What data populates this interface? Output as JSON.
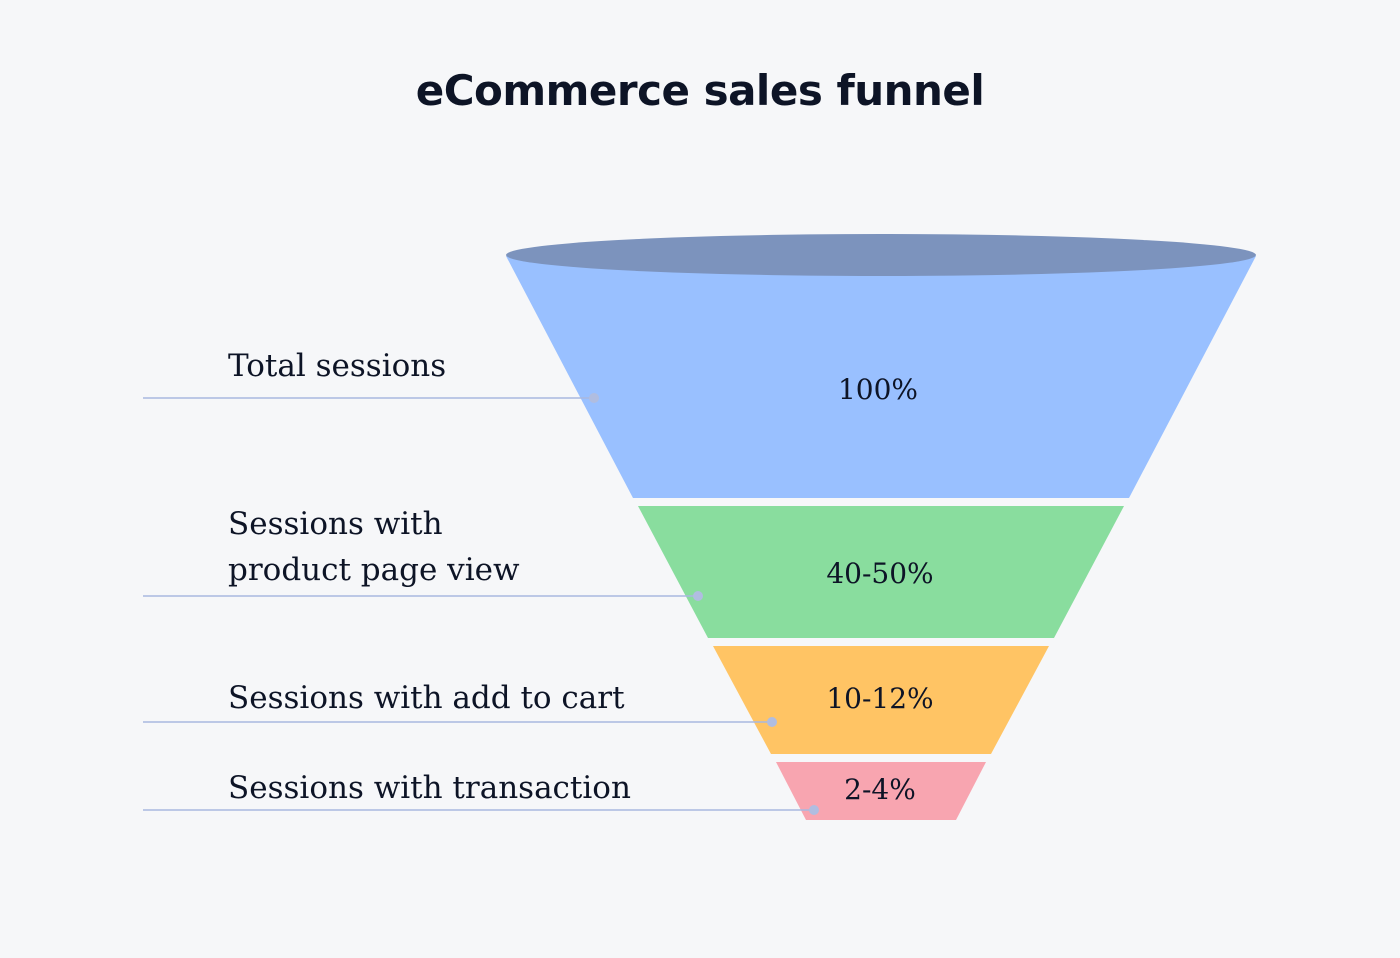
{
  "title": "eCommerce sales funnel",
  "stages": [
    {
      "label_lines": [
        "Total sessions"
      ],
      "value": "100%",
      "color": "#99c0ff"
    },
    {
      "label_lines": [
        "Sessions with",
        "product page view"
      ],
      "value": "40-50%",
      "color": "#89dd9e"
    },
    {
      "label_lines": [
        "Sessions with add to cart"
      ],
      "value": "10-12%",
      "color": "#ffc464"
    },
    {
      "label_lines": [
        "Sessions with transaction"
      ],
      "value": "2-4%",
      "color": "#f8a5b0"
    }
  ],
  "colors": {
    "background": "#f6f7f9",
    "rim": "#7c93bd",
    "leader_line": "#a9b8df",
    "leader_dot": "#b0bde0",
    "text": "#0d1426"
  }
}
